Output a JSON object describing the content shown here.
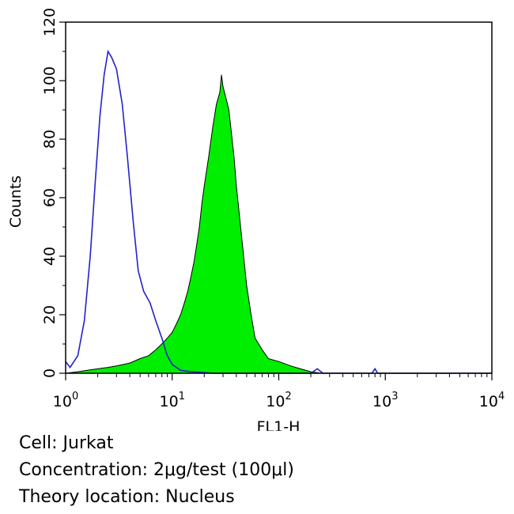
{
  "chart_data": {
    "type": "area",
    "xlabel": "FL1-H",
    "ylabel": "Counts",
    "x_scale": "log",
    "xlim": [
      1,
      10000
    ],
    "ylim": [
      0,
      120
    ],
    "grid": false,
    "x_ticks": [
      {
        "base": "10",
        "exp": "0",
        "value": 1
      },
      {
        "base": "10",
        "exp": "1",
        "value": 10
      },
      {
        "base": "10",
        "exp": "2",
        "value": 100
      },
      {
        "base": "10",
        "exp": "3",
        "value": 1000
      },
      {
        "base": "10",
        "exp": "4",
        "value": 10000
      }
    ],
    "y_ticks": [
      0,
      20,
      40,
      60,
      80,
      100,
      120
    ],
    "series": [
      {
        "color": "#2222cc",
        "style": "outline",
        "points": [
          [
            1.0,
            4
          ],
          [
            1.1,
            2
          ],
          [
            1.3,
            6
          ],
          [
            1.5,
            18
          ],
          [
            1.7,
            40
          ],
          [
            1.9,
            66
          ],
          [
            2.1,
            88
          ],
          [
            2.3,
            102
          ],
          [
            2.5,
            110
          ],
          [
            2.7,
            108
          ],
          [
            3.0,
            104
          ],
          [
            3.4,
            92
          ],
          [
            3.8,
            74
          ],
          [
            4.3,
            52
          ],
          [
            4.8,
            35
          ],
          [
            5.4,
            28
          ],
          [
            6.2,
            24
          ],
          [
            7.0,
            18
          ],
          [
            8.0,
            12
          ],
          [
            9.0,
            6
          ],
          [
            10.0,
            3
          ],
          [
            12.0,
            1
          ],
          [
            15.0,
            0.5
          ],
          [
            25.0,
            0
          ],
          [
            200.0,
            0
          ],
          [
            230.0,
            1.5
          ],
          [
            260.0,
            0
          ],
          [
            750.0,
            0
          ],
          [
            800.0,
            1.5
          ],
          [
            850.0,
            0
          ],
          [
            10000.0,
            0
          ]
        ]
      },
      {
        "color": "#00ee00",
        "style": "filled",
        "points": [
          [
            1.0,
            0
          ],
          [
            1.3,
            0.5
          ],
          [
            1.6,
            1
          ],
          [
            2.0,
            1.5
          ],
          [
            2.5,
            2
          ],
          [
            3.0,
            2.5
          ],
          [
            4.0,
            3.5
          ],
          [
            5.0,
            5
          ],
          [
            6.0,
            6
          ],
          [
            7.0,
            8
          ],
          [
            8.0,
            10
          ],
          [
            9.0,
            12
          ],
          [
            10.0,
            14
          ],
          [
            11.0,
            17
          ],
          [
            12.0,
            20
          ],
          [
            13.0,
            24
          ],
          [
            14.0,
            28
          ],
          [
            15.0,
            33
          ],
          [
            16.0,
            38
          ],
          [
            17.0,
            44
          ],
          [
            18.0,
            50
          ],
          [
            19.0,
            58
          ],
          [
            20.0,
            64
          ],
          [
            22.0,
            74
          ],
          [
            24.0,
            84
          ],
          [
            26.0,
            92
          ],
          [
            28.0,
            96
          ],
          [
            29.0,
            102
          ],
          [
            30.0,
            98
          ],
          [
            32.0,
            94
          ],
          [
            34.0,
            90
          ],
          [
            36.0,
            82
          ],
          [
            38.0,
            74
          ],
          [
            40.0,
            64
          ],
          [
            45.0,
            46
          ],
          [
            50.0,
            30
          ],
          [
            55.0,
            20
          ],
          [
            60.0,
            12
          ],
          [
            70.0,
            8
          ],
          [
            80.0,
            5
          ],
          [
            100.0,
            4
          ],
          [
            130.0,
            2.5
          ],
          [
            160.0,
            1.5
          ],
          [
            200.0,
            0.5
          ],
          [
            250.0,
            0
          ],
          [
            10000.0,
            0
          ]
        ]
      }
    ]
  },
  "caption": {
    "line1": "Cell: Jurkat",
    "line2": "Concentration: 2μg/test (100μl)",
    "line3": "Theory location: Nucleus"
  }
}
